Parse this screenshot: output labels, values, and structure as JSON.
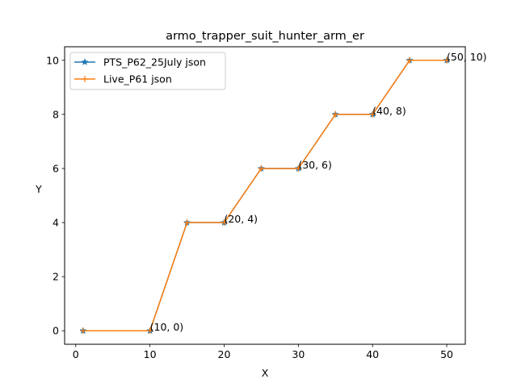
{
  "chart_data": {
    "type": "line",
    "title": "armo_trapper_suit_hunter_arm_er",
    "xlabel": "X",
    "ylabel": "Y",
    "xlim": [
      -1.5,
      52.5
    ],
    "ylim": [
      -0.5,
      10.5
    ],
    "xticks": [
      0,
      10,
      20,
      30,
      40,
      50
    ],
    "yticks": [
      0,
      2,
      4,
      6,
      8,
      10
    ],
    "x": [
      1,
      10,
      15,
      20,
      25,
      30,
      35,
      40,
      45,
      50
    ],
    "series": [
      {
        "name": "PTS_P62_25July json",
        "color": "#1f77b4",
        "marker": "star",
        "values": [
          0,
          0,
          4,
          4,
          6,
          6,
          8,
          8,
          10,
          10
        ]
      },
      {
        "name": "Live_P61 json",
        "color": "#ff7f0e",
        "marker": "plus",
        "values": [
          0,
          0,
          4,
          4,
          6,
          6,
          8,
          8,
          10,
          10
        ]
      }
    ],
    "annotations": [
      {
        "x": 10,
        "y": 0,
        "text": "(10, 0)"
      },
      {
        "x": 20,
        "y": 4,
        "text": "(20, 4)"
      },
      {
        "x": 30,
        "y": 6,
        "text": "(30, 6)"
      },
      {
        "x": 40,
        "y": 8,
        "text": "(40, 8)"
      },
      {
        "x": 50,
        "y": 10,
        "text": "(50, 10)"
      }
    ],
    "grid": false,
    "legend": "upper-left"
  }
}
